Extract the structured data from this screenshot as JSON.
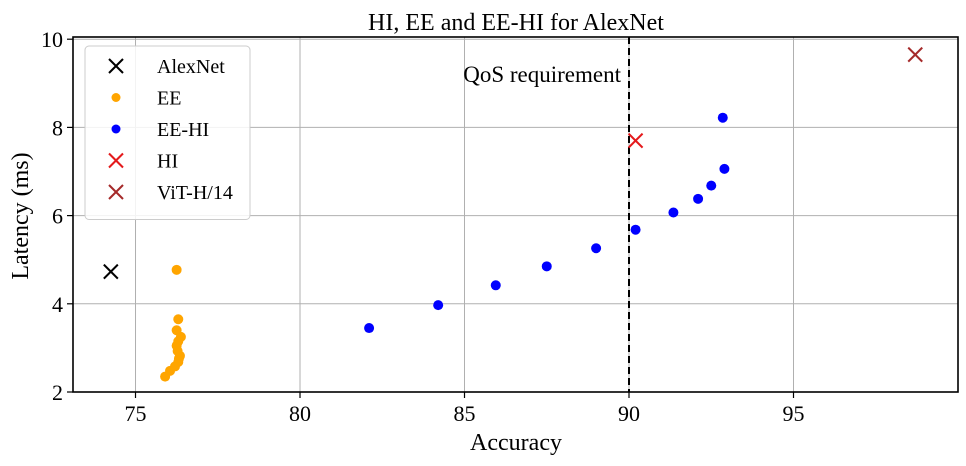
{
  "chart_data": {
    "type": "scatter",
    "title": "HI, EE and EE-HI for AlexNet",
    "xlabel": "Accuracy",
    "ylabel": "Latency (ms)",
    "xlim": [
      73.1,
      100.0
    ],
    "ylim": [
      2.0,
      10.05
    ],
    "xticks": [
      75,
      80,
      85,
      90,
      95
    ],
    "yticks": [
      2,
      4,
      6,
      8,
      10
    ],
    "grid": true,
    "legend_position": "top-left",
    "series": [
      {
        "name": "AlexNet",
        "marker": "x",
        "color": "#000000",
        "points": [
          [
            74.25,
            4.73
          ]
        ]
      },
      {
        "name": "EE",
        "marker": "circle",
        "color": "#ffa500",
        "points": [
          [
            75.9,
            2.35
          ],
          [
            76.05,
            2.48
          ],
          [
            76.2,
            2.58
          ],
          [
            76.3,
            2.68
          ],
          [
            76.32,
            2.76
          ],
          [
            76.35,
            2.82
          ],
          [
            76.28,
            2.93
          ],
          [
            76.25,
            3.05
          ],
          [
            76.3,
            3.15
          ],
          [
            76.38,
            3.25
          ],
          [
            76.25,
            3.4
          ],
          [
            76.3,
            3.65
          ],
          [
            76.25,
            4.77
          ]
        ]
      },
      {
        "name": "EE-HI",
        "marker": "circle",
        "color": "#0000ff",
        "points": [
          [
            82.1,
            3.45
          ],
          [
            84.2,
            3.97
          ],
          [
            85.95,
            4.42
          ],
          [
            87.5,
            4.85
          ],
          [
            89.0,
            5.26
          ],
          [
            90.2,
            5.68
          ],
          [
            91.35,
            6.07
          ],
          [
            92.1,
            6.38
          ],
          [
            92.5,
            6.68
          ],
          [
            92.9,
            7.06
          ],
          [
            92.85,
            8.22
          ]
        ]
      },
      {
        "name": "HI",
        "marker": "x",
        "color": "#e41a1c",
        "points": [
          [
            90.2,
            7.7
          ]
        ]
      },
      {
        "name": "ViT-H/14",
        "marker": "x",
        "color": "#a52a2a",
        "points": [
          [
            98.7,
            9.65
          ]
        ]
      }
    ],
    "annotations": [
      {
        "text": "QoS requirement",
        "type": "vline",
        "x": 90.0
      }
    ]
  }
}
